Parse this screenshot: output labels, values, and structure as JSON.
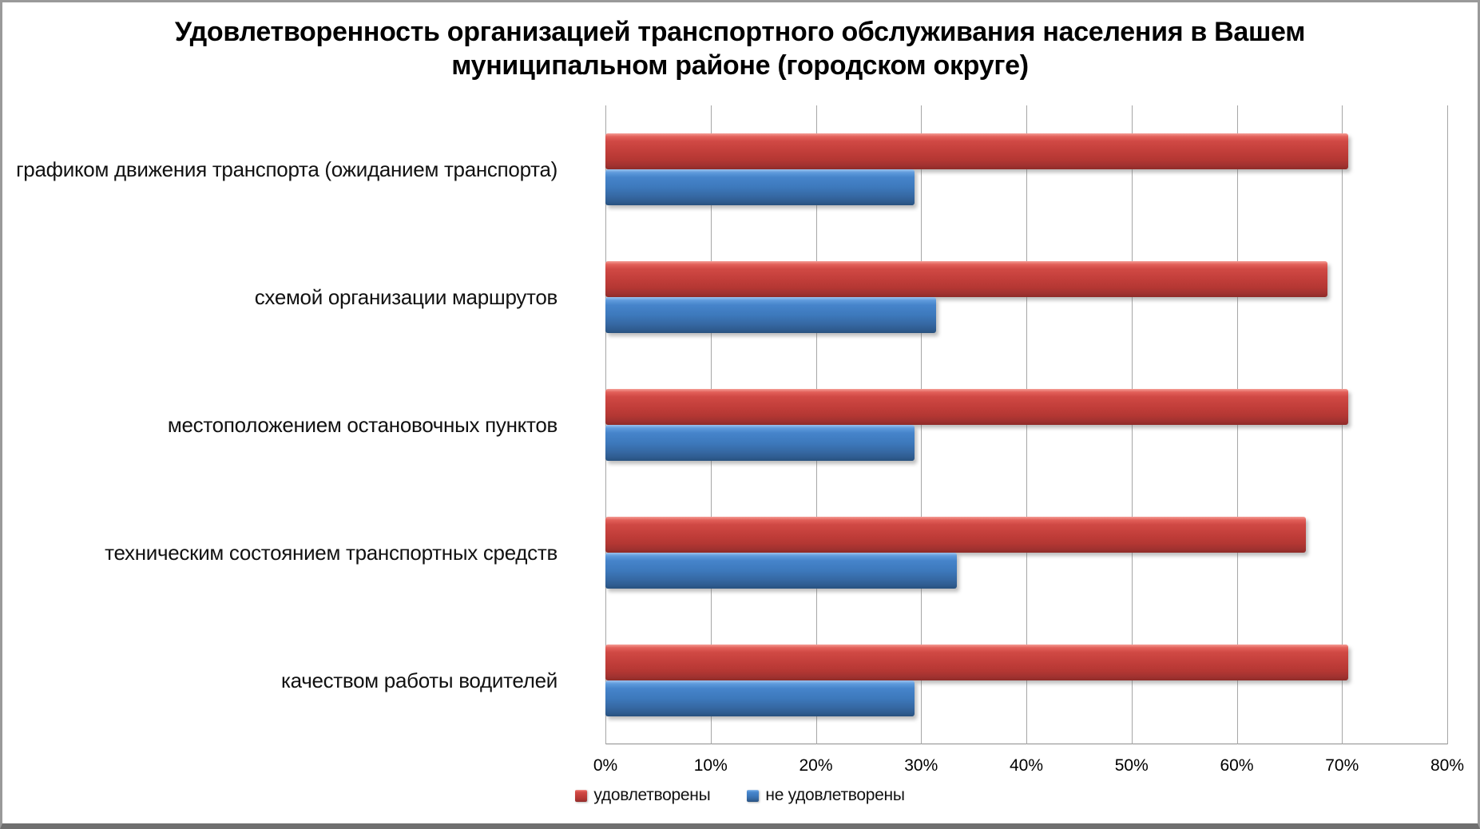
{
  "frame": {
    "title_lines": [
      "Удовлетворенность организацией транспортного обслуживания населения в Вашем",
      "муниципальном районе (городском округе)"
    ]
  },
  "chart_data": {
    "type": "bar",
    "orientation": "horizontal",
    "title": "Удовлетворенность организацией транспортного обслуживания населения в Вашем муниципальном районе (городском округе)",
    "categories": [
      "графиком движения транспорта (ожиданием транспорта)",
      "схемой организации маршрутов",
      "местоположением остановочных пунктов",
      "техническим состоянием транспортных средств",
      "качеством работы водителей"
    ],
    "series": [
      {
        "name": "удовлетворены",
        "color": "#c23e3a",
        "values": [
          70.6,
          68.6,
          70.6,
          66.6,
          70.6
        ]
      },
      {
        "name": "не удовлетворены",
        "color": "#3d79bc",
        "values": [
          29.4,
          31.4,
          29.4,
          33.4,
          29.4
        ]
      }
    ],
    "x_ticks": [
      "0%",
      "10%",
      "20%",
      "30%",
      "40%",
      "50%",
      "60%",
      "70%",
      "80%"
    ],
    "xlim": [
      0,
      80
    ],
    "grid": "vertical",
    "legend_position": "bottom",
    "units": "percent of respondents"
  }
}
